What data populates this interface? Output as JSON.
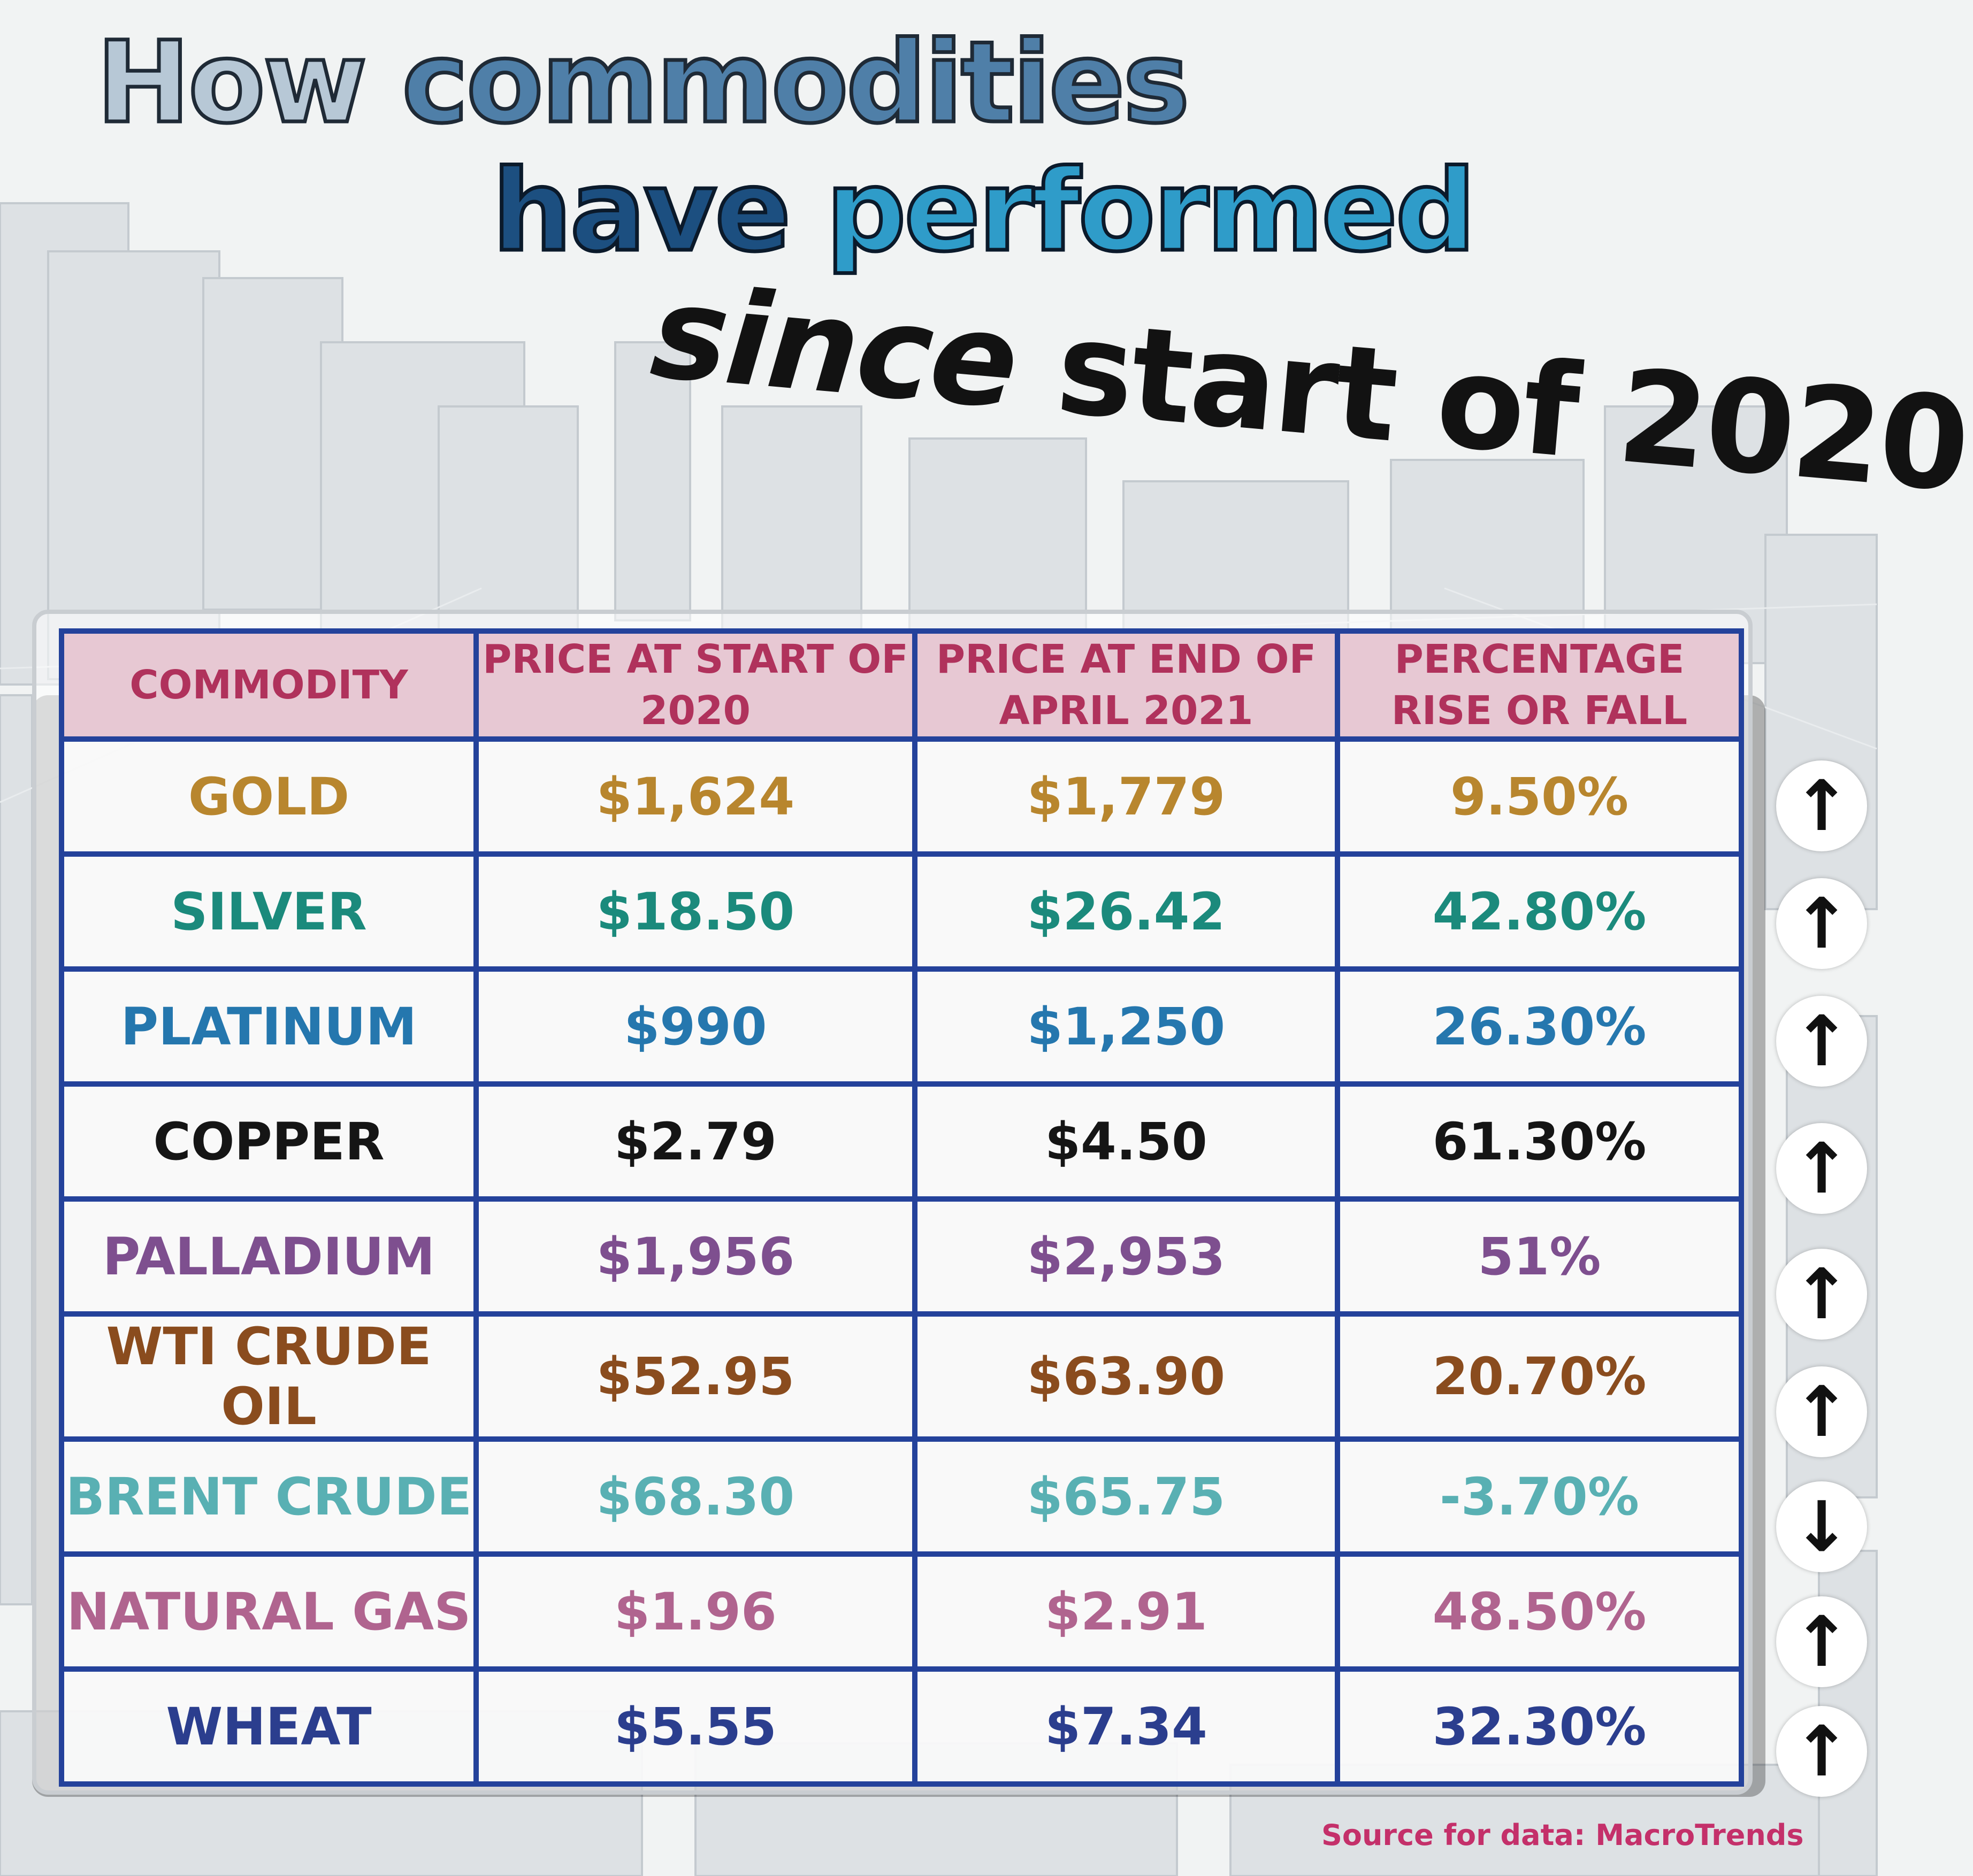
{
  "title": {
    "line1_a": "How",
    "line1_b": "commodities",
    "line2_a": "have",
    "line2_b": "performed",
    "line3_a": "since",
    "line3_b": "start of 2020"
  },
  "table": {
    "headers": [
      "COMMODITY",
      "PRICE AT START OF 2020",
      "PRICE AT END OF APRIL 2021",
      "PERCENTAGE RISE OR FALL"
    ],
    "rows": [
      {
        "commodity": "GOLD",
        "start": "$1,624",
        "end": "$1,779",
        "change": "9.50%",
        "direction": "↑",
        "color": "#b8862e"
      },
      {
        "commodity": "SILVER",
        "start": "$18.50",
        "end": "$26.42",
        "change": "42.80%",
        "direction": "↑",
        "color": "#1b8a7c"
      },
      {
        "commodity": "PLATINUM",
        "start": "$990",
        "end": "$1,250",
        "change": "26.30%",
        "direction": "↑",
        "color": "#2577ae"
      },
      {
        "commodity": "COPPER",
        "start": "$2.79",
        "end": "$4.50",
        "change": "61.30%",
        "direction": "↑",
        "color": "#151515"
      },
      {
        "commodity": "PALLADIUM",
        "start": "$1,956",
        "end": "$2,953",
        "change": "51%",
        "direction": "↑",
        "color": "#7e4f8f"
      },
      {
        "commodity": "WTI CRUDE OIL",
        "start": "$52.95",
        "end": "$63.90",
        "change": "20.70%",
        "direction": "↑",
        "color": "#8a4c1e"
      },
      {
        "commodity": "BRENT CRUDE",
        "start": "$68.30",
        "end": "$65.75",
        "change": "-3.70%",
        "direction": "↓",
        "color": "#59b0b3"
      },
      {
        "commodity": "NATURAL GAS",
        "start": "$1.96",
        "end": "$2.91",
        "change": "48.50%",
        "direction": "↑",
        "color": "#b0648f"
      },
      {
        "commodity": "WHEAT",
        "start": "$5.55",
        "end": "$7.34",
        "change": "32.30%",
        "direction": "↑",
        "color": "#2b3e8e"
      }
    ]
  },
  "source": "Source for data: MacroTrends"
}
